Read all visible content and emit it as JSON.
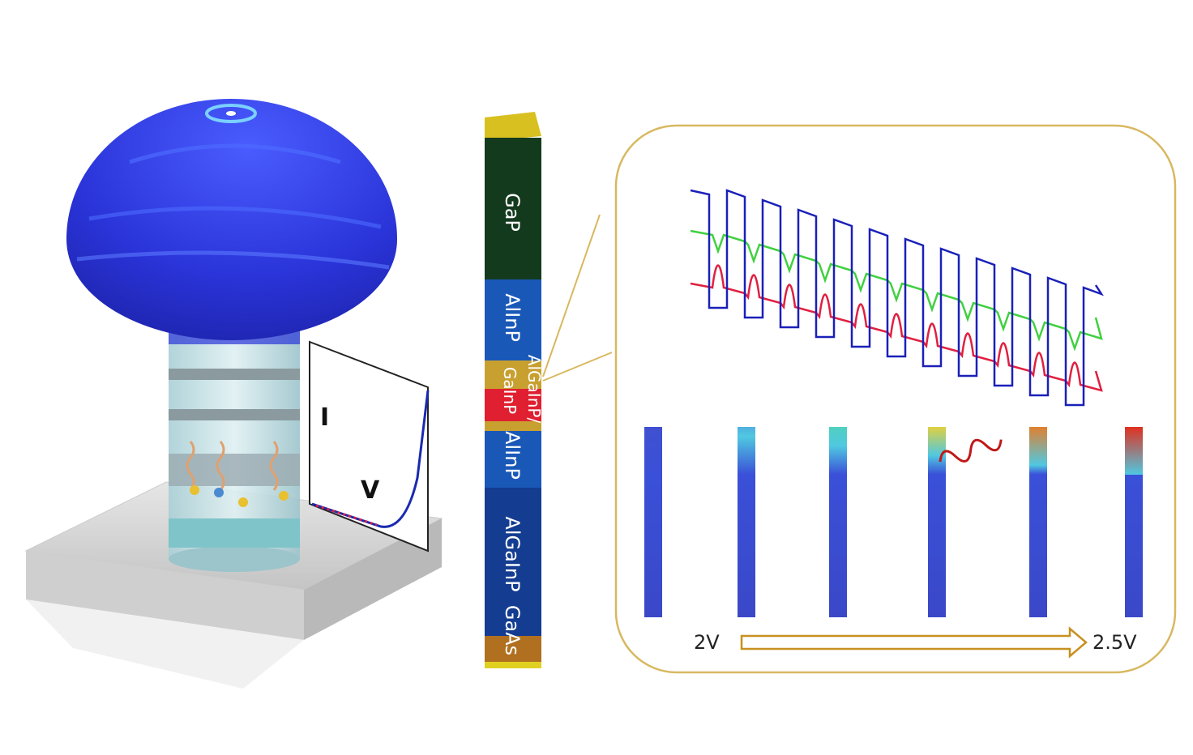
{
  "device": {
    "iv_plot": {
      "y_label": "I",
      "x_label": "V"
    }
  },
  "layers": [
    {
      "label": "GaP"
    },
    {
      "label": "AlInP"
    },
    {
      "label": "AlGaInP/"
    },
    {
      "label": "GaInP"
    },
    {
      "label": "AlInP"
    },
    {
      "label": "AlGaInP"
    },
    {
      "label": "GaAs"
    }
  ],
  "simulation": {
    "start_label": "2V",
    "end_label": "2.5V"
  }
}
